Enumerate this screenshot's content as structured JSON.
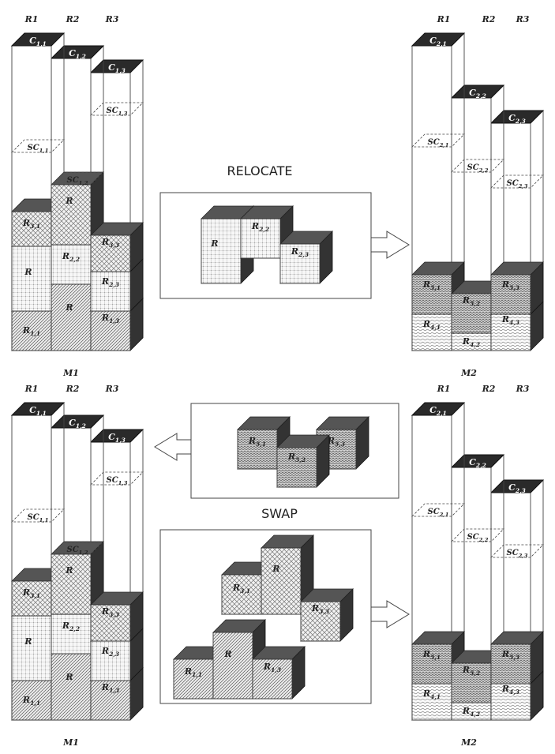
{
  "headers": {
    "r1": "R1",
    "r2": "R2",
    "r3": "R3"
  },
  "action_titles": {
    "relocate": "RELOCATE",
    "swap": "SWAP"
  },
  "machines": {
    "left": "M1",
    "right": "M2"
  },
  "labels": {
    "C11": [
      "C",
      "1,1"
    ],
    "C12": [
      "C",
      "1,2"
    ],
    "C13": [
      "C",
      "1,3"
    ],
    "SC11": [
      "SC",
      "1,1"
    ],
    "SC12": [
      "SC",
      "1,2"
    ],
    "SC13": [
      "SC",
      "1,3"
    ],
    "R31": [
      "R",
      "3,1"
    ],
    "R33": [
      "R",
      "3,3"
    ],
    "R22": [
      "R",
      "2,2"
    ],
    "R23": [
      "R",
      "2,3"
    ],
    "R11": [
      "R",
      "1,1"
    ],
    "R13": [
      "R",
      "1,3"
    ],
    "R": [
      "R",
      ""
    ],
    "C21": [
      "C",
      "2,1"
    ],
    "C22": [
      "C",
      "2,2"
    ],
    "C23": [
      "C",
      "2,3"
    ],
    "SC21": [
      "SC",
      "2,1"
    ],
    "SC22": [
      "SC",
      "2,2"
    ],
    "SC23": [
      "SC",
      "2,3"
    ],
    "R51": [
      "R",
      "5,1"
    ],
    "R52": [
      "R",
      "5,2"
    ],
    "R53": [
      "R",
      "5,3"
    ],
    "R41": [
      "R",
      "4,1"
    ],
    "R42": [
      "R",
      "4,2"
    ],
    "R43": [
      "R",
      "4,3"
    ]
  }
}
